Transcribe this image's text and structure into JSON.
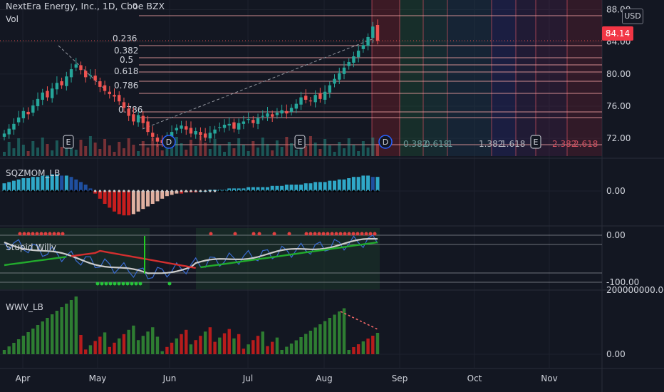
{
  "header": {
    "symbol_title": "NextEra Energy, Inc., 1D, Cboe BZX",
    "volume_label": "Vol",
    "currency": "USD",
    "last_price": "84.14"
  },
  "panes": {
    "momentum": {
      "label": "SQZMOM_LB",
      "tick_labels": [
        "0.00"
      ]
    },
    "willy": {
      "label": "Stupid Willy",
      "tick_labels": [
        "0.00",
        "-100.00"
      ]
    },
    "wwv": {
      "label": "WWV_LB",
      "tick_labels": [
        "200000000.00",
        "0.00"
      ]
    }
  },
  "fib_labels": [
    "0.236",
    "0.382",
    "0.5",
    "0.618",
    "0.786",
    "0.786"
  ],
  "fib_time_labels": [
    "0.382",
    "0.618",
    "1",
    "1.382",
    "1.618",
    "2.382",
    "2.618"
  ],
  "event_markers": [
    "E",
    "D",
    "E",
    "D",
    "E"
  ],
  "colors": {
    "background": "#131722",
    "up": "#26a69a",
    "down": "#ef5350",
    "grid": "#1e222d",
    "fib_line": "#f0a0a0",
    "sma_fast": "#cccccc",
    "sma_slow_green": "#22ab2d",
    "sma_slow_red": "#d32f2f"
  },
  "chart_data": {
    "type": "candlestick",
    "x_axis": {
      "tick_labels": [
        "Apr",
        "May",
        "Jun",
        "Jul",
        "Aug",
        "Sep",
        "Oct",
        "Nov"
      ]
    },
    "y_axis": {
      "tick_labels": [
        "88.00",
        "84.00",
        "80.00",
        "76.00",
        "72.00"
      ],
      "range": [
        69.8,
        89.2
      ]
    },
    "last_close": 84.14,
    "close_series": [
      72.6,
      73.2,
      73.8,
      74.6,
      75.4,
      75.0,
      76.1,
      76.9,
      77.7,
      77.1,
      78.2,
      78.9,
      78.6,
      79.7,
      80.6,
      81.2,
      80.5,
      79.6,
      79.9,
      79.2,
      78.4,
      77.9,
      77.5,
      77.2,
      76.6,
      75.8,
      74.8,
      74.1,
      74.9,
      73.9,
      72.8,
      72.2,
      71.6,
      71.4,
      72.1,
      72.8,
      73.3,
      73.6,
      73.1,
      72.6,
      72.9,
      72.4,
      72.1,
      72.7,
      73.1,
      73.4,
      73.7,
      73.8,
      73.2,
      73.9,
      74.1,
      74.4,
      73.9,
      74.5,
      74.8,
      75.1,
      74.7,
      75.2,
      75.5,
      75.1,
      75.8,
      76.3,
      77.1,
      76.8,
      76.6,
      77.4,
      76.9,
      77.8,
      78.6,
      79.4,
      80.1,
      80.8,
      81.5,
      82.2,
      82.9,
      83.6,
      84.6,
      85.9,
      84.14
    ],
    "momentum_histogram": [
      0.6,
      0.7,
      0.8,
      0.9,
      1.0,
      1.0,
      1.1,
      1.1,
      1.2,
      1.2,
      1.3,
      1.3,
      1.2,
      1.2,
      1.1,
      0.9,
      0.7,
      0.5,
      0.2,
      -0.2,
      -0.6,
      -1.0,
      -1.3,
      -1.6,
      -1.8,
      -1.9,
      -1.9,
      -1.8,
      -1.6,
      -1.4,
      -1.2,
      -1.0,
      -0.8,
      -0.6,
      -0.4,
      -0.3,
      -0.2,
      -0.2,
      -0.1,
      -0.1,
      -0.1,
      0.0,
      0.0,
      0.1,
      0.1,
      0.1,
      0.1,
      0.2,
      0.2,
      0.2,
      0.2,
      0.3,
      0.3,
      0.3,
      0.3,
      0.3,
      0.4,
      0.4,
      0.4,
      0.5,
      0.5,
      0.5,
      0.5,
      0.6,
      0.6,
      0.7,
      0.7,
      0.7,
      0.8,
      0.8,
      0.9,
      0.9,
      1.0,
      1.1,
      1.1,
      1.2,
      1.2,
      1.1,
      1.1
    ],
    "willy_ticks": [
      0,
      -100
    ],
    "wwv_ticks": [
      200000000,
      0
    ]
  }
}
